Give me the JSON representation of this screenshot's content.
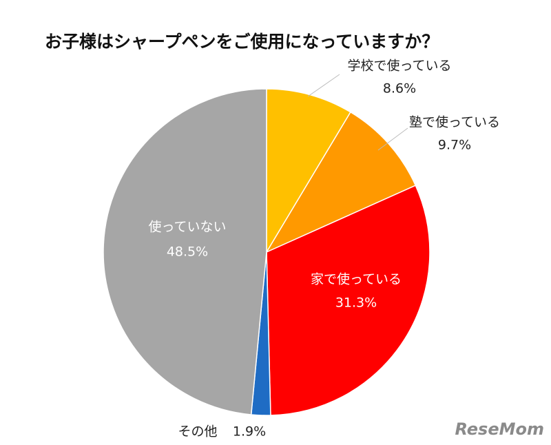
{
  "chart_data": {
    "type": "pie",
    "title": "お子様はシャープペンをご使用になっていますか？",
    "categories": [
      "学校で使っている",
      "塾で使っている",
      "家で使っている",
      "その他",
      "使っていない"
    ],
    "values": [
      8.6,
      9.7,
      31.3,
      1.9,
      48.5
    ],
    "value_labels": [
      "8.6%",
      "9.7%",
      "31.3%",
      "1.9%",
      "48.5%"
    ],
    "colors": [
      "#FFC000",
      "#FF9900",
      "#FF0000",
      "#1F6CC4",
      "#A6A6A6"
    ],
    "watermark": "ReseMom"
  }
}
